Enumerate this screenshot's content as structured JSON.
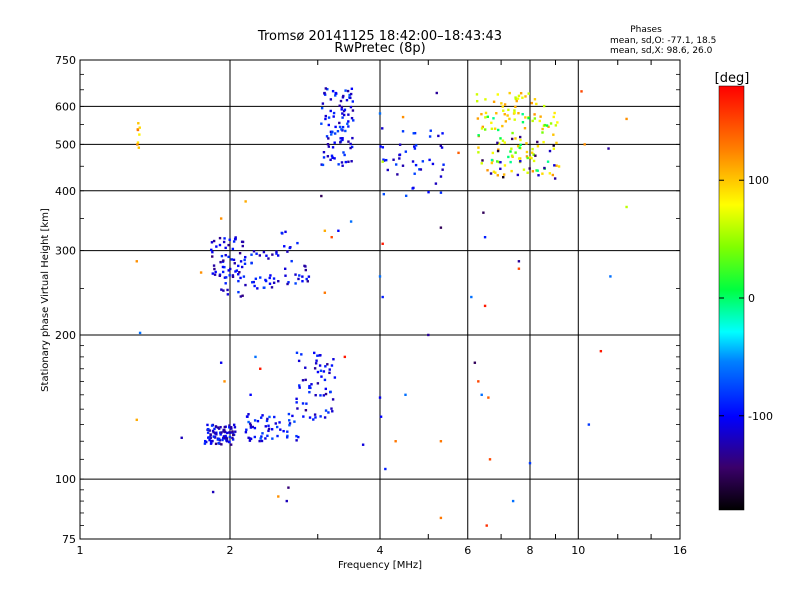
{
  "chart_data": {
    "type": "scatter",
    "title": "Tromsø 20141125 18:42:00–18:43:43",
    "subtitle": "RwPretec (8p)",
    "xlabel": "Frequency [MHz]",
    "ylabel": "Stationary phase Virtual Height [km]",
    "x_scale": "log2",
    "y_scale": "log",
    "xlim": [
      1,
      16
    ],
    "ylim": [
      75,
      750
    ],
    "x_ticks": [
      1,
      2,
      4,
      6,
      8,
      10,
      16
    ],
    "y_ticks": [
      75,
      100,
      200,
      300,
      400,
      500,
      600,
      750
    ],
    "grid": "on",
    "info": {
      "heading": "Phases",
      "line_o": "mean, sd,O: -77.1, 18.5",
      "line_x": "mean, sd,X:  98.6, 26.0"
    },
    "colorbar": {
      "label": "[deg]",
      "range": [
        -180,
        180
      ],
      "ticks": [
        -100,
        0,
        100
      ],
      "placement": "right"
    },
    "clusters": [
      {
        "x": [
          1.78,
          2.05
        ],
        "y": [
          118,
          130
        ],
        "phase": -110,
        "count": 90
      },
      {
        "x": [
          2.15,
          2.75
        ],
        "y": [
          120,
          137
        ],
        "phase": -95,
        "count": 55
      },
      {
        "x": [
          2.7,
          3.25
        ],
        "y": [
          130,
          185
        ],
        "phase": -105,
        "count": 60
      },
      {
        "x": [
          1.82,
          2.15
        ],
        "y": [
          240,
          320
        ],
        "phase": -110,
        "count": 70
      },
      {
        "x": [
          2.2,
          2.5
        ],
        "y": [
          250,
          300
        ],
        "phase": -100,
        "count": 30
      },
      {
        "x": [
          2.5,
          2.9
        ],
        "y": [
          255,
          330
        ],
        "phase": -105,
        "count": 25
      },
      {
        "x": [
          3.05,
          3.55
        ],
        "y": [
          450,
          655
        ],
        "phase": -100,
        "count": 95
      },
      {
        "x": [
          4.0,
          5.4
        ],
        "y": [
          390,
          540
        ],
        "phase": -100,
        "count": 45
      },
      {
        "x": [
          6.2,
          9.3
        ],
        "y": [
          430,
          640
        ],
        "phase": 90,
        "count": 110
      },
      {
        "x": [
          6.3,
          9.2
        ],
        "y": [
          440,
          580
        ],
        "phase": 20,
        "count": 30
      },
      {
        "x": [
          6.3,
          9.0
        ],
        "y": [
          420,
          520
        ],
        "phase": -140,
        "count": 20
      },
      {
        "x": [
          1.3,
          1.32
        ],
        "y": [
          470,
          560
        ],
        "phase": 110,
        "count": 8
      }
    ],
    "points": [
      {
        "x": 1.3,
        "y": 285,
        "phase": 120
      },
      {
        "x": 1.32,
        "y": 202,
        "phase": -60
      },
      {
        "x": 1.3,
        "y": 133,
        "phase": 110
      },
      {
        "x": 1.6,
        "y": 122,
        "phase": -120
      },
      {
        "x": 1.75,
        "y": 270,
        "phase": 120
      },
      {
        "x": 1.92,
        "y": 350,
        "phase": 120
      },
      {
        "x": 1.92,
        "y": 175,
        "phase": -105
      },
      {
        "x": 1.95,
        "y": 160,
        "phase": 120
      },
      {
        "x": 1.85,
        "y": 94,
        "phase": -120
      },
      {
        "x": 2.15,
        "y": 380,
        "phase": 110
      },
      {
        "x": 2.25,
        "y": 180,
        "phase": -60
      },
      {
        "x": 2.3,
        "y": 170,
        "phase": 170
      },
      {
        "x": 2.2,
        "y": 150,
        "phase": -100
      },
      {
        "x": 2.5,
        "y": 92,
        "phase": 120
      },
      {
        "x": 2.62,
        "y": 96,
        "phase": -140
      },
      {
        "x": 2.6,
        "y": 90,
        "phase": -120
      },
      {
        "x": 3.05,
        "y": 390,
        "phase": -150
      },
      {
        "x": 3.1,
        "y": 330,
        "phase": 110
      },
      {
        "x": 3.1,
        "y": 245,
        "phase": 130
      },
      {
        "x": 3.3,
        "y": 330,
        "phase": -100
      },
      {
        "x": 3.5,
        "y": 345,
        "phase": -60
      },
      {
        "x": 3.2,
        "y": 320,
        "phase": 150
      },
      {
        "x": 3.7,
        "y": 118,
        "phase": -110
      },
      {
        "x": 3.4,
        "y": 180,
        "phase": 170
      },
      {
        "x": 4.05,
        "y": 310,
        "phase": 170
      },
      {
        "x": 4.0,
        "y": 265,
        "phase": -60
      },
      {
        "x": 4.05,
        "y": 240,
        "phase": -90
      },
      {
        "x": 4.0,
        "y": 148,
        "phase": -105
      },
      {
        "x": 4.02,
        "y": 135,
        "phase": -100
      },
      {
        "x": 4.1,
        "y": 105,
        "phase": -90
      },
      {
        "x": 4.05,
        "y": 460,
        "phase": 60
      },
      {
        "x": 4.0,
        "y": 580,
        "phase": -60
      },
      {
        "x": 4.45,
        "y": 570,
        "phase": 120
      },
      {
        "x": 4.7,
        "y": 490,
        "phase": -90
      },
      {
        "x": 4.5,
        "y": 150,
        "phase": -60
      },
      {
        "x": 4.3,
        "y": 120,
        "phase": 130
      },
      {
        "x": 5.0,
        "y": 200,
        "phase": -130
      },
      {
        "x": 5.2,
        "y": 640,
        "phase": -130
      },
      {
        "x": 5.3,
        "y": 335,
        "phase": -150
      },
      {
        "x": 5.3,
        "y": 120,
        "phase": 130
      },
      {
        "x": 5.3,
        "y": 83,
        "phase": 130
      },
      {
        "x": 5.75,
        "y": 480,
        "phase": 140
      },
      {
        "x": 6.1,
        "y": 240,
        "phase": -60
      },
      {
        "x": 6.2,
        "y": 175,
        "phase": -150
      },
      {
        "x": 6.3,
        "y": 160,
        "phase": 150
      },
      {
        "x": 6.4,
        "y": 150,
        "phase": -60
      },
      {
        "x": 6.45,
        "y": 360,
        "phase": -150
      },
      {
        "x": 6.5,
        "y": 320,
        "phase": -90
      },
      {
        "x": 6.5,
        "y": 230,
        "phase": 170
      },
      {
        "x": 6.6,
        "y": 148,
        "phase": 140
      },
      {
        "x": 6.65,
        "y": 110,
        "phase": 150
      },
      {
        "x": 6.55,
        "y": 80,
        "phase": 160
      },
      {
        "x": 7.4,
        "y": 90,
        "phase": -60
      },
      {
        "x": 7.6,
        "y": 285,
        "phase": -130
      },
      {
        "x": 7.6,
        "y": 275,
        "phase": 150
      },
      {
        "x": 8.0,
        "y": 108,
        "phase": -80
      },
      {
        "x": 10.15,
        "y": 645,
        "phase": 150
      },
      {
        "x": 10.3,
        "y": 500,
        "phase": 120
      },
      {
        "x": 10.5,
        "y": 130,
        "phase": -80
      },
      {
        "x": 11.1,
        "y": 185,
        "phase": 170
      },
      {
        "x": 11.5,
        "y": 490,
        "phase": -130
      },
      {
        "x": 11.6,
        "y": 265,
        "phase": -60
      },
      {
        "x": 12.5,
        "y": 370,
        "phase": 60
      },
      {
        "x": 12.5,
        "y": 565,
        "phase": 120
      }
    ]
  }
}
